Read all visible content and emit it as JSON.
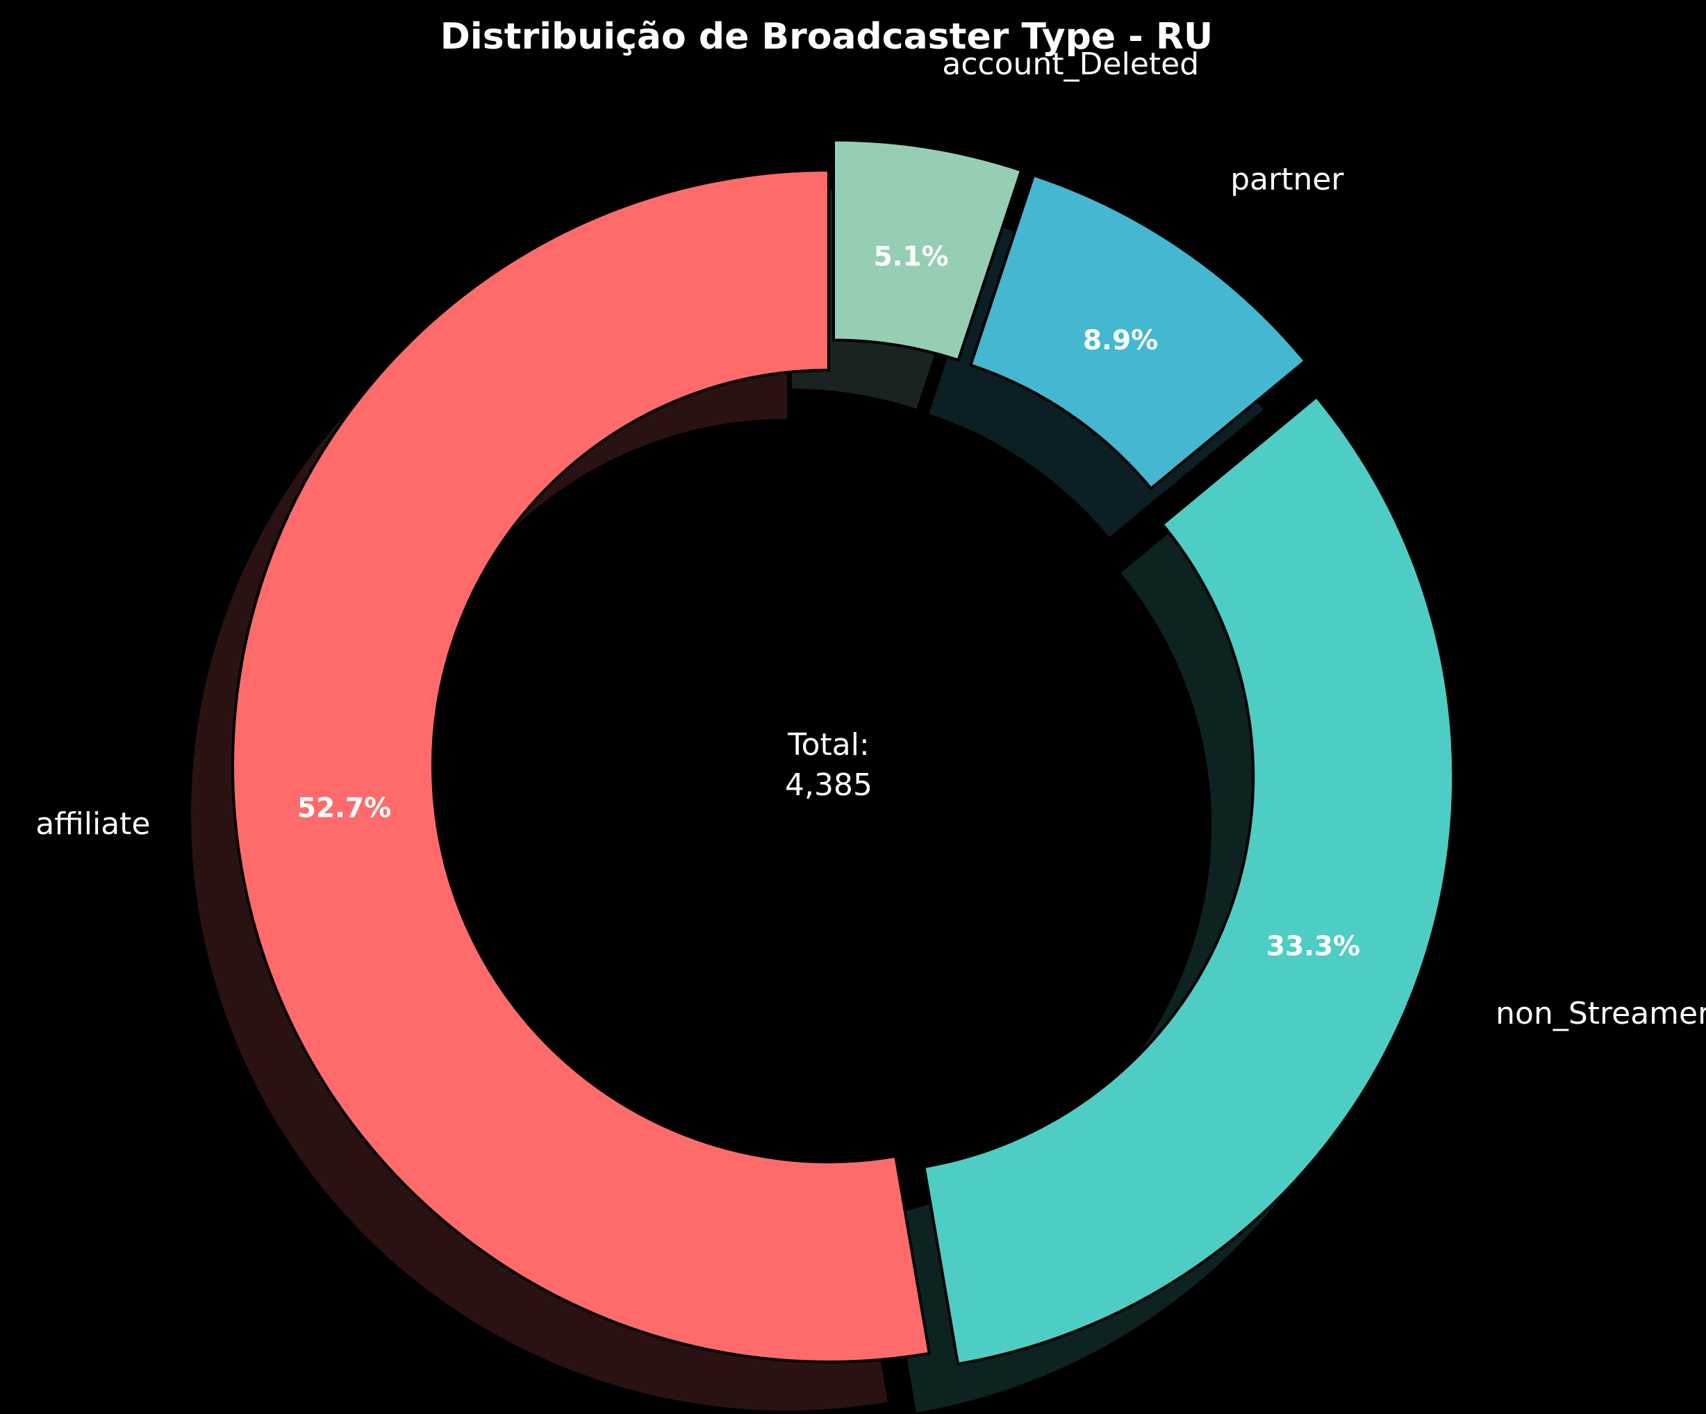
{
  "chart_data": {
    "type": "pie",
    "style": "donut",
    "title": "Distribuição de Broadcaster Type - RU",
    "total_label": "Total:",
    "total_value": "4,385",
    "slices": [
      {
        "label": "affiliate",
        "value": 52.7,
        "pct_label": "52.7%",
        "color": "#ff6b6b",
        "exploded": false
      },
      {
        "label": "non_Streamer",
        "value": 33.3,
        "pct_label": "33.3%",
        "color": "#4ecdc4",
        "exploded": true
      },
      {
        "label": "partner",
        "value": 8.9,
        "pct_label": "8.9%",
        "color": "#45b7d1",
        "exploded": true
      },
      {
        "label": "account_Deleted",
        "value": 5.1,
        "pct_label": "5.1%",
        "color": "#96ceb4",
        "exploded": true
      }
    ],
    "start_angle": "top",
    "direction": "counterclockwise",
    "shadow": true,
    "background": "#000000"
  }
}
